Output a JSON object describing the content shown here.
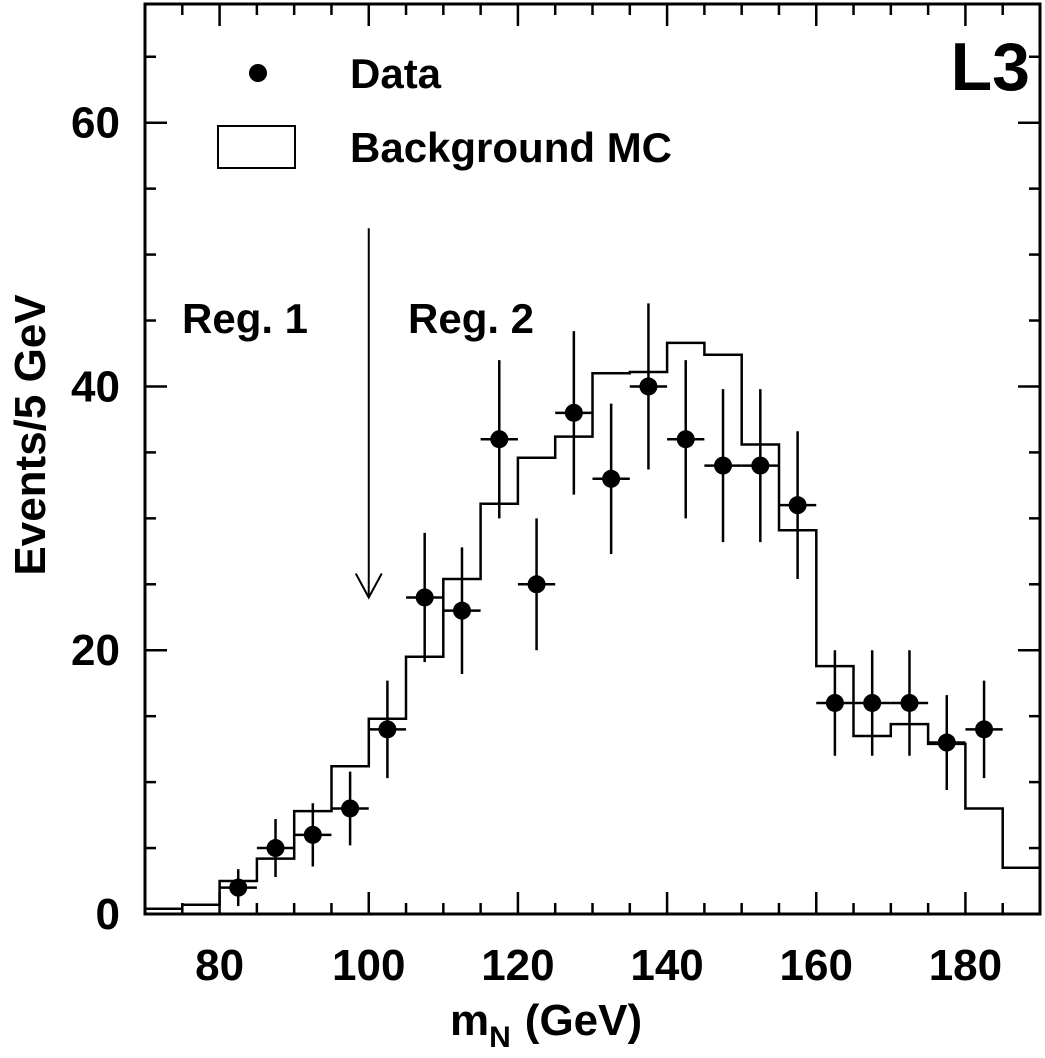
{
  "chart_data": {
    "type": "bar",
    "title": "",
    "experiment_label": "L3",
    "xlabel_main": "m",
    "xlabel_sub": "N",
    "xlabel_unit": "(GeV)",
    "ylabel": "Events/5 GeV",
    "xlim": [
      70,
      190
    ],
    "ylim": [
      0,
      69
    ],
    "x_ticks": [
      80,
      100,
      120,
      140,
      160,
      180
    ],
    "x_tick_labels": [
      "80",
      "100",
      "120",
      "140",
      "160",
      "180"
    ],
    "y_ticks": [
      0,
      20,
      40,
      60
    ],
    "y_tick_labels": [
      "0",
      "20",
      "40",
      "60"
    ],
    "grid": false,
    "legend": {
      "placement": "top-left",
      "entries": [
        {
          "label": "Data",
          "marker": "filled-circle"
        },
        {
          "label": "Background MC",
          "marker": "open-box"
        }
      ]
    },
    "annotations": [
      {
        "text": "Reg. 1",
        "x": 90
      },
      {
        "text": "Reg. 2",
        "x": 110
      },
      {
        "type": "arrow-down",
        "x": 100,
        "from_y": 52,
        "to_y": 24
      }
    ],
    "series": [
      {
        "name": "Background MC",
        "type": "step-histogram",
        "bin_edges": [
          70,
          75,
          80,
          85,
          90,
          95,
          100,
          105,
          110,
          115,
          120,
          125,
          130,
          135,
          140,
          145,
          150,
          155,
          160,
          165,
          170,
          175,
          180,
          185,
          190
        ],
        "values": [
          0.4,
          0.7,
          2.5,
          4.2,
          7.8,
          11.2,
          14.8,
          19.5,
          25.4,
          31.1,
          34.6,
          36.2,
          41.0,
          41.1,
          43.3,
          42.4,
          35.6,
          29.1,
          18.8,
          13.5,
          14.4,
          12.9,
          8.0,
          3.5
        ]
      },
      {
        "name": "Data",
        "type": "errorbar",
        "bin_width": 5,
        "x": [
          82.5,
          87.5,
          92.5,
          97.5,
          102.5,
          107.5,
          112.5,
          117.5,
          122.5,
          127.5,
          132.5,
          137.5,
          142.5,
          147.5,
          152.5,
          157.5,
          162.5,
          167.5,
          172.5,
          177.5,
          182.5
        ],
        "y": [
          2,
          5,
          6,
          8,
          14,
          24,
          23,
          36,
          25,
          38,
          33,
          40,
          36,
          34,
          34,
          31,
          16,
          16,
          16,
          13,
          14
        ],
        "err_low": [
          1.4,
          2.2,
          2.4,
          2.8,
          3.7,
          4.9,
          4.8,
          6.0,
          5.0,
          6.2,
          5.7,
          6.3,
          6.0,
          5.8,
          5.8,
          5.6,
          4.0,
          4.0,
          4.0,
          3.6,
          3.7
        ],
        "err_high": [
          1.4,
          2.2,
          2.4,
          2.8,
          3.7,
          4.9,
          4.8,
          6.0,
          5.0,
          6.2,
          5.7,
          6.3,
          6.0,
          5.8,
          5.8,
          5.6,
          4.0,
          4.0,
          4.0,
          3.6,
          3.7
        ]
      }
    ]
  }
}
